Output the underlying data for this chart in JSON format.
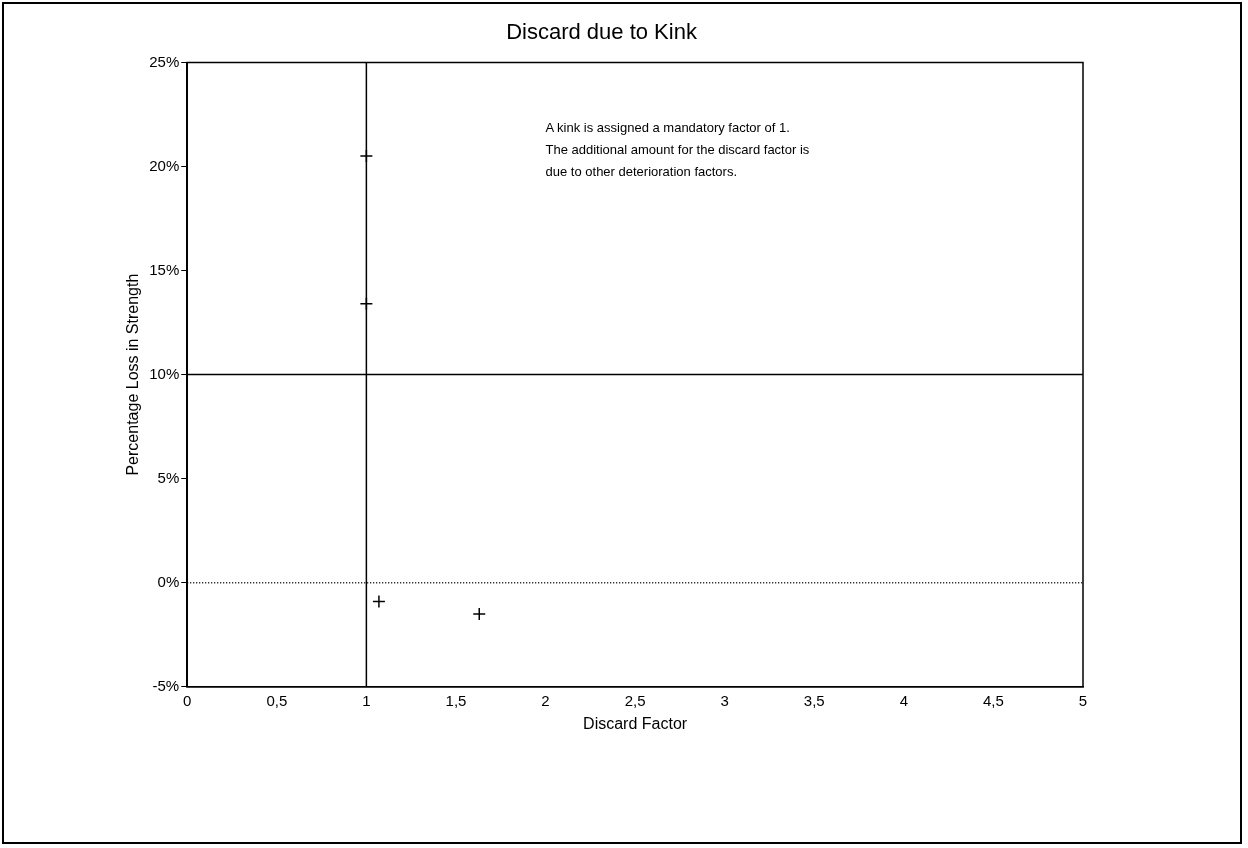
{
  "chart_data": {
    "type": "scatter",
    "title": "Discard due to Kink",
    "xlabel": "Discard Factor",
    "ylabel": "Percentage Loss in Strength",
    "x": [
      1.0,
      1.0,
      1.07,
      1.63
    ],
    "values": [
      20.5,
      13.4,
      -0.9,
      -1.5
    ],
    "color": "#000000",
    "marker": "cross",
    "xlim": [
      0,
      5
    ],
    "xticks": [
      0,
      {
        "value": 0.5,
        "label": "0,5"
      },
      1,
      {
        "value": 1.5,
        "label": "1,5"
      },
      2,
      {
        "value": 2.5,
        "label": "2,5"
      },
      3,
      {
        "value": 3.5,
        "label": "3,5"
      },
      4,
      {
        "value": 4.5,
        "label": "4,5"
      },
      5
    ],
    "ylim": [
      -5,
      25
    ],
    "yticks": [
      {
        "value": -5,
        "label": "-5%"
      },
      {
        "value": 0,
        "label": "0%"
      },
      {
        "value": 5,
        "label": "5%"
      },
      {
        "value": 10,
        "label": "10%"
      },
      {
        "value": 15,
        "label": "15%"
      },
      {
        "value": 20,
        "label": "20%"
      },
      {
        "value": 25,
        "label": "25%"
      }
    ],
    "ref_lines": [
      {
        "axis": "x",
        "value": 1,
        "line_style": "solid"
      },
      {
        "axis": "y",
        "value": 10,
        "line_style": "solid"
      },
      {
        "axis": "y",
        "value": 0,
        "line_style": "dotted"
      }
    ],
    "annotations": [
      "A kink is assigned a mandatory factor of 1.\nThe additional amount for the discard factor is\ndue to other deterioration factors."
    ],
    "grid": false,
    "legend": false
  }
}
